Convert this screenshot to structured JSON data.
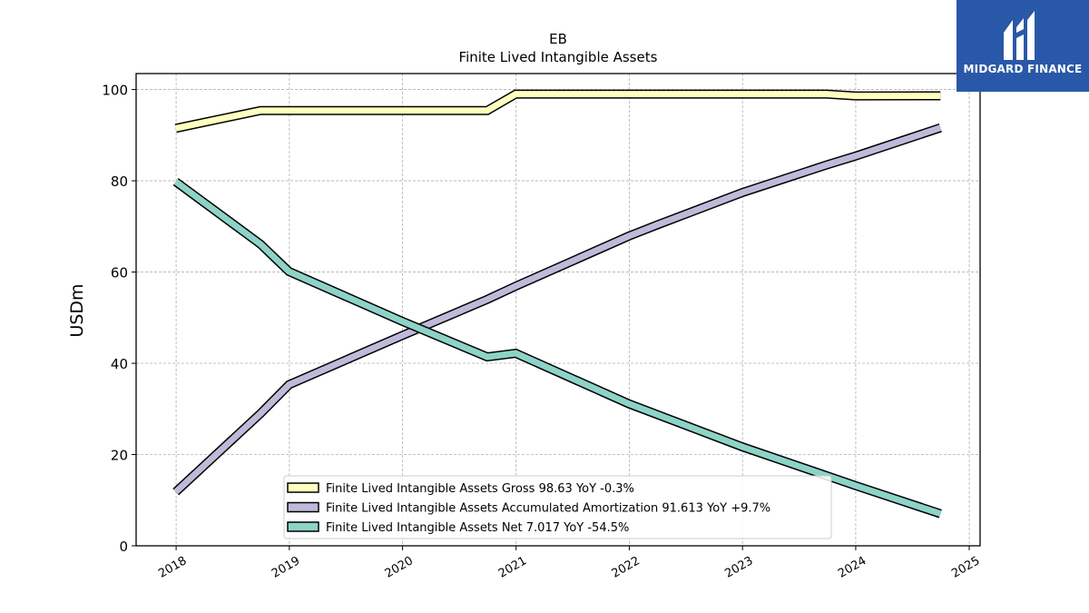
{
  "chart_data": {
    "type": "line",
    "title": "EB",
    "subtitle": "Finite Lived Intangible Assets",
    "ylabel": "USDm",
    "xlabel": "",
    "ylim": [
      0,
      103.5
    ],
    "yticks": [
      0,
      20,
      40,
      60,
      80,
      100
    ],
    "xlim": [
      "2017-08-25",
      "2025-02-05"
    ],
    "xticks": [
      "2018",
      "2019",
      "2020",
      "2021",
      "2022",
      "2023",
      "2024",
      "2025"
    ],
    "grid": true,
    "legend_position": "lower center",
    "series": [
      {
        "name": "Finite Lived Intangible Assets Gross",
        "legend": "Finite Lived Intangible Assets Gross  98.63 YoY -0.3%",
        "color": "#ffffbf",
        "points": [
          [
            "2017-12-31",
            91.5
          ],
          [
            "2018-09-30",
            95.4
          ],
          [
            "2018-12-31",
            95.4
          ],
          [
            "2019-12-31",
            95.4
          ],
          [
            "2020-09-30",
            95.4
          ],
          [
            "2020-12-31",
            99.0
          ],
          [
            "2021-12-31",
            99.0
          ],
          [
            "2022-12-31",
            99.0
          ],
          [
            "2023-09-30",
            99.0
          ],
          [
            "2023-12-31",
            98.6
          ],
          [
            "2024-09-30",
            98.63
          ]
        ]
      },
      {
        "name": "Finite Lived Intangible Assets Accumulated Amortization",
        "legend": "Finite Lived Intangible Assets Accumulated Amortization  91.613 YoY +9.7%",
        "color": "#bebada",
        "points": [
          [
            "2017-12-31",
            11.8
          ],
          [
            "2018-09-30",
            29.0
          ],
          [
            "2018-12-31",
            35.3
          ],
          [
            "2019-12-31",
            46.1
          ],
          [
            "2020-09-30",
            54.0
          ],
          [
            "2020-12-31",
            56.9
          ],
          [
            "2021-12-31",
            67.9
          ],
          [
            "2022-03-31",
            70.3
          ],
          [
            "2022-12-31",
            77.4
          ],
          [
            "2023-09-30",
            83.5
          ],
          [
            "2023-12-31",
            85.4
          ],
          [
            "2024-09-30",
            91.613
          ]
        ]
      },
      {
        "name": "Finite Lived Intangible Assets Net",
        "legend": "Finite Lived Intangible Assets Net  7.017 YoY -54.5%",
        "color": "#8dd3c7",
        "points": [
          [
            "2017-12-31",
            79.8
          ],
          [
            "2018-09-30",
            66.1
          ],
          [
            "2018-12-31",
            60.1
          ],
          [
            "2019-12-31",
            49.2
          ],
          [
            "2020-09-30",
            41.4
          ],
          [
            "2020-12-31",
            42.2
          ],
          [
            "2021-12-31",
            31.1
          ],
          [
            "2022-12-31",
            21.7
          ],
          [
            "2023-12-31",
            13.2
          ],
          [
            "2024-09-30",
            7.017
          ]
        ]
      }
    ]
  },
  "logo": {
    "text": "MIDGARD FINANCE",
    "icon": "midgard-logo-icon",
    "background": "#2a58a8"
  }
}
